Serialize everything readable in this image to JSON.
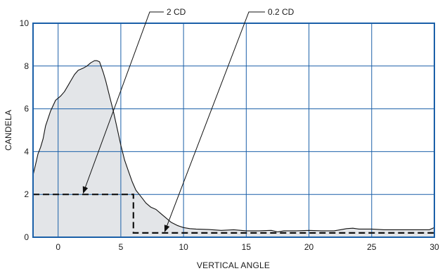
{
  "chart_data": {
    "type": "area",
    "xlabel": "VERTICAL ANGLE",
    "ylabel": "CANDELA",
    "xlim": [
      -2,
      30
    ],
    "ylim": [
      0,
      10
    ],
    "xticks": [
      0,
      5,
      10,
      15,
      20,
      25,
      30
    ],
    "yticks": [
      0,
      2,
      4,
      6,
      8,
      10
    ],
    "xtick_labels": [
      "0",
      "5",
      "10",
      "15",
      "20",
      "25",
      "30"
    ],
    "ytick_labels": [
      "0",
      "2",
      "4",
      "6",
      "8",
      "10"
    ],
    "grid": true,
    "colors": {
      "grid": "#1a5fa8",
      "frame": "#1a5fa8",
      "fill": "#e3e5e8",
      "line": "#111111",
      "threshold": "#111111"
    },
    "series": [
      {
        "x": [
          -2.0,
          -1.8,
          -1.6,
          -1.4,
          -1.2,
          -1.0,
          -0.6,
          -0.2,
          0.2,
          0.5,
          0.8,
          1.0,
          1.3,
          1.6,
          2.0,
          2.3,
          2.6,
          2.9,
          3.1,
          3.3,
          3.6,
          3.8,
          4.1,
          4.4,
          4.7,
          5.0,
          5.3,
          5.6,
          5.9,
          6.2,
          6.6,
          7.0,
          7.4,
          7.8,
          8.2,
          8.6,
          9.0,
          9.5,
          10.0,
          10.5,
          11.0,
          12.0,
          13.0,
          14.0,
          15.0,
          16.0,
          17.0,
          17.5,
          18.0,
          19.0,
          20.0,
          21.0,
          22.0,
          22.5,
          23.0,
          23.5,
          24.0,
          25.0,
          26.0,
          27.0,
          28.0,
          29.0,
          29.6,
          30.0
        ],
        "values": [
          2.9,
          3.4,
          3.9,
          4.2,
          4.6,
          5.2,
          5.9,
          6.4,
          6.6,
          6.8,
          7.1,
          7.3,
          7.6,
          7.8,
          7.9,
          8.0,
          8.15,
          8.25,
          8.25,
          8.2,
          7.7,
          7.3,
          6.6,
          5.9,
          5.1,
          4.3,
          3.6,
          3.1,
          2.6,
          2.2,
          1.9,
          1.6,
          1.4,
          1.3,
          1.1,
          0.9,
          0.7,
          0.55,
          0.45,
          0.4,
          0.38,
          0.36,
          0.32,
          0.35,
          0.3,
          0.3,
          0.32,
          0.25,
          0.3,
          0.3,
          0.32,
          0.3,
          0.3,
          0.35,
          0.4,
          0.42,
          0.38,
          0.38,
          0.35,
          0.35,
          0.35,
          0.35,
          0.35,
          0.45
        ]
      }
    ],
    "threshold": {
      "x": [
        -2,
        6,
        6,
        30
      ],
      "y": [
        2,
        2,
        0.2,
        0.2
      ]
    },
    "annotations": [
      {
        "text": "2 CD",
        "point": [
          2,
          2
        ]
      },
      {
        "text": "0.2 CD",
        "point": [
          8.5,
          0.2
        ]
      }
    ]
  }
}
